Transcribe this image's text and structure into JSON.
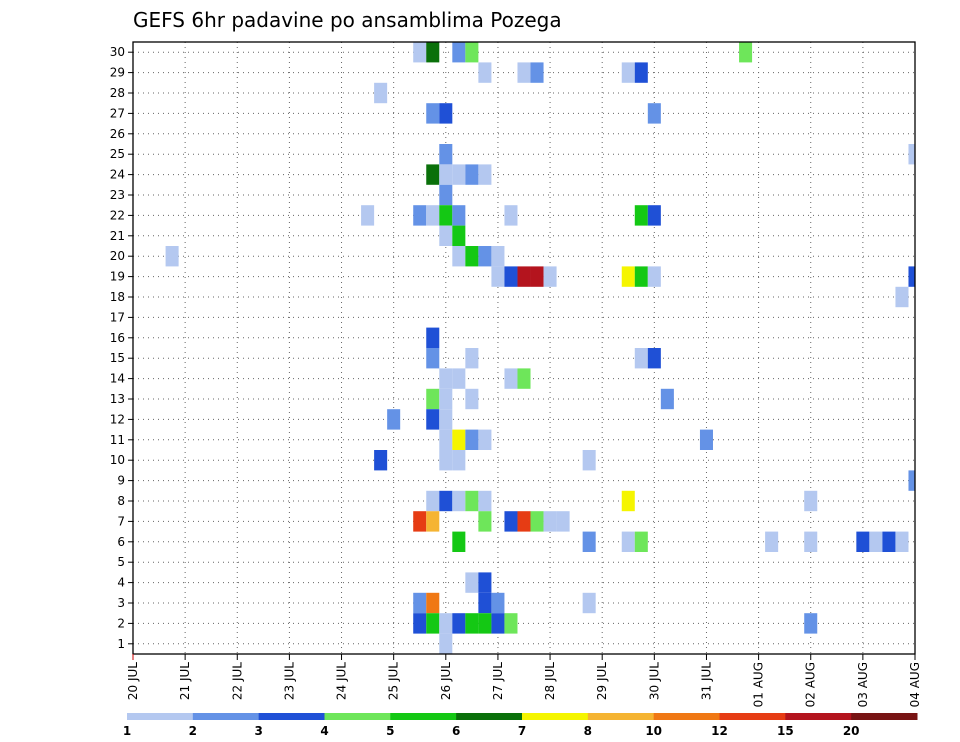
{
  "chart_data": {
    "type": "heatmap",
    "title": "GEFS 6hr padavine po ansamblima Pozega",
    "xlabel": "",
    "ylabel": "",
    "x_ticks": [
      "20 JUL",
      "21 JUL",
      "22 JUL",
      "23 JUL",
      "24 JUL",
      "25 JUL",
      "26 JUL",
      "27 JUL",
      "28 JUL",
      "29 JUL",
      "30 JUL",
      "31 JUL",
      "01 AUG",
      "02 AUG",
      "03 AUG",
      "04 AUG"
    ],
    "x_step": "6h",
    "x_start": "20 JUL 00Z",
    "y_ticks": [
      "1",
      "2",
      "3",
      "4",
      "5",
      "6",
      "7",
      "8",
      "9",
      "10",
      "11",
      "12",
      "13",
      "14",
      "15",
      "16",
      "17",
      "18",
      "19",
      "20",
      "21",
      "22",
      "23",
      "24",
      "25",
      "26",
      "27",
      "28",
      "29",
      "30"
    ],
    "grid": true,
    "legend": {
      "placement": "bottom",
      "labels": [
        "1",
        "2",
        "3",
        "4",
        "5",
        "6",
        "7",
        "8",
        "10",
        "12",
        "15",
        "20"
      ],
      "colors": [
        "#b4c8f0",
        "#6492e6",
        "#1f50d6",
        "#6ee65a",
        "#14c814",
        "#0a700a",
        "#f5f500",
        "#f5b432",
        "#f07814",
        "#e63c14",
        "#b4141e",
        "#781414"
      ]
    },
    "cells": [
      {
        "member": 30,
        "t": "25 JUL 12Z",
        "class": 1
      },
      {
        "member": 30,
        "t": "25 JUL 18Z",
        "class": 6
      },
      {
        "member": 30,
        "t": "26 JUL 06Z",
        "class": 2
      },
      {
        "member": 30,
        "t": "26 JUL 12Z",
        "class": 4
      },
      {
        "member": 30,
        "t": "31 JUL 18Z",
        "class": 4
      },
      {
        "member": 29,
        "t": "26 JUL 18Z",
        "class": 1
      },
      {
        "member": 29,
        "t": "27 JUL 12Z",
        "class": 1
      },
      {
        "member": 29,
        "t": "27 JUL 18Z",
        "class": 2
      },
      {
        "member": 29,
        "t": "29 JUL 12Z",
        "class": 1
      },
      {
        "member": 29,
        "t": "29 JUL 18Z",
        "class": 3
      },
      {
        "member": 28,
        "t": "24 JUL 18Z",
        "class": 1
      },
      {
        "member": 27,
        "t": "25 JUL 18Z",
        "class": 2
      },
      {
        "member": 27,
        "t": "26 JUL 00Z",
        "class": 3
      },
      {
        "member": 27,
        "t": "30 JUL 00Z",
        "class": 2
      },
      {
        "member": 25,
        "t": "26 JUL 00Z",
        "class": 2
      },
      {
        "member": 25,
        "t": "04 AUG 00Z",
        "class": 1
      },
      {
        "member": 24,
        "t": "25 JUL 18Z",
        "class": 6
      },
      {
        "member": 24,
        "t": "26 JUL 00Z",
        "class": 1
      },
      {
        "member": 24,
        "t": "26 JUL 06Z",
        "class": 1
      },
      {
        "member": 24,
        "t": "26 JUL 12Z",
        "class": 2
      },
      {
        "member": 24,
        "t": "26 JUL 18Z",
        "class": 1
      },
      {
        "member": 23,
        "t": "26 JUL 00Z",
        "class": 2
      },
      {
        "member": 22,
        "t": "24 JUL 12Z",
        "class": 1
      },
      {
        "member": 22,
        "t": "25 JUL 12Z",
        "class": 2
      },
      {
        "member": 22,
        "t": "25 JUL 18Z",
        "class": 1
      },
      {
        "member": 22,
        "t": "26 JUL 00Z",
        "class": 5
      },
      {
        "member": 22,
        "t": "26 JUL 06Z",
        "class": 2
      },
      {
        "member": 22,
        "t": "27 JUL 06Z",
        "class": 1
      },
      {
        "member": 22,
        "t": "29 JUL 18Z",
        "class": 5
      },
      {
        "member": 22,
        "t": "30 JUL 00Z",
        "class": 3
      },
      {
        "member": 21,
        "t": "26 JUL 00Z",
        "class": 1
      },
      {
        "member": 21,
        "t": "26 JUL 06Z",
        "class": 5
      },
      {
        "member": 20,
        "t": "20 JUL 18Z",
        "class": 1
      },
      {
        "member": 20,
        "t": "26 JUL 06Z",
        "class": 1
      },
      {
        "member": 20,
        "t": "26 JUL 12Z",
        "class": 5
      },
      {
        "member": 20,
        "t": "26 JUL 18Z",
        "class": 2
      },
      {
        "member": 20,
        "t": "27 JUL 00Z",
        "class": 1
      },
      {
        "member": 19,
        "t": "27 JUL 00Z",
        "class": 1
      },
      {
        "member": 19,
        "t": "27 JUL 06Z",
        "class": 3
      },
      {
        "member": 19,
        "t": "27 JUL 12Z",
        "class": 11
      },
      {
        "member": 19,
        "t": "27 JUL 18Z",
        "class": 11
      },
      {
        "member": 19,
        "t": "28 JUL 00Z",
        "class": 1
      },
      {
        "member": 19,
        "t": "29 JUL 12Z",
        "class": 7
      },
      {
        "member": 19,
        "t": "29 JUL 18Z",
        "class": 5
      },
      {
        "member": 19,
        "t": "30 JUL 00Z",
        "class": 1
      },
      {
        "member": 19,
        "t": "04 AUG 00Z",
        "class": 3
      },
      {
        "member": 18,
        "t": "03 AUG 18Z",
        "class": 1
      },
      {
        "member": 16,
        "t": "25 JUL 18Z",
        "class": 3
      },
      {
        "member": 15,
        "t": "25 JUL 18Z",
        "class": 2
      },
      {
        "member": 15,
        "t": "26 JUL 12Z",
        "class": 1
      },
      {
        "member": 15,
        "t": "29 JUL 18Z",
        "class": 1
      },
      {
        "member": 15,
        "t": "30 JUL 00Z",
        "class": 3
      },
      {
        "member": 14,
        "t": "26 JUL 00Z",
        "class": 1
      },
      {
        "member": 14,
        "t": "26 JUL 06Z",
        "class": 1
      },
      {
        "member": 14,
        "t": "27 JUL 06Z",
        "class": 1
      },
      {
        "member": 14,
        "t": "27 JUL 12Z",
        "class": 4
      },
      {
        "member": 13,
        "t": "25 JUL 18Z",
        "class": 4
      },
      {
        "member": 13,
        "t": "26 JUL 00Z",
        "class": 1
      },
      {
        "member": 13,
        "t": "26 JUL 12Z",
        "class": 1
      },
      {
        "member": 13,
        "t": "30 JUL 06Z",
        "class": 2
      },
      {
        "member": 12,
        "t": "25 JUL 00Z",
        "class": 2
      },
      {
        "member": 12,
        "t": "25 JUL 18Z",
        "class": 3
      },
      {
        "member": 12,
        "t": "26 JUL 00Z",
        "class": 1
      },
      {
        "member": 11,
        "t": "26 JUL 00Z",
        "class": 1
      },
      {
        "member": 11,
        "t": "26 JUL 06Z",
        "class": 7
      },
      {
        "member": 11,
        "t": "26 JUL 12Z",
        "class": 2
      },
      {
        "member": 11,
        "t": "26 JUL 18Z",
        "class": 1
      },
      {
        "member": 11,
        "t": "31 JUL 00Z",
        "class": 2
      },
      {
        "member": 10,
        "t": "24 JUL 18Z",
        "class": 3
      },
      {
        "member": 10,
        "t": "26 JUL 00Z",
        "class": 1
      },
      {
        "member": 10,
        "t": "26 JUL 06Z",
        "class": 1
      },
      {
        "member": 10,
        "t": "28 JUL 18Z",
        "class": 1
      },
      {
        "member": 9,
        "t": "04 AUG 00Z",
        "class": 2
      },
      {
        "member": 8,
        "t": "25 JUL 18Z",
        "class": 1
      },
      {
        "member": 8,
        "t": "26 JUL 00Z",
        "class": 3
      },
      {
        "member": 8,
        "t": "26 JUL 06Z",
        "class": 1
      },
      {
        "member": 8,
        "t": "26 JUL 12Z",
        "class": 4
      },
      {
        "member": 8,
        "t": "26 JUL 18Z",
        "class": 1
      },
      {
        "member": 8,
        "t": "29 JUL 12Z",
        "class": 7
      },
      {
        "member": 8,
        "t": "02 AUG 00Z",
        "class": 1
      },
      {
        "member": 7,
        "t": "25 JUL 12Z",
        "class": 10
      },
      {
        "member": 7,
        "t": "25 JUL 18Z",
        "class": 8
      },
      {
        "member": 7,
        "t": "26 JUL 18Z",
        "class": 4
      },
      {
        "member": 7,
        "t": "27 JUL 06Z",
        "class": 3
      },
      {
        "member": 7,
        "t": "27 JUL 12Z",
        "class": 10
      },
      {
        "member": 7,
        "t": "27 JUL 18Z",
        "class": 4
      },
      {
        "member": 7,
        "t": "28 JUL 00Z",
        "class": 1
      },
      {
        "member": 7,
        "t": "28 JUL 06Z",
        "class": 1
      },
      {
        "member": 6,
        "t": "26 JUL 06Z",
        "class": 5
      },
      {
        "member": 6,
        "t": "28 JUL 18Z",
        "class": 2
      },
      {
        "member": 6,
        "t": "29 JUL 12Z",
        "class": 1
      },
      {
        "member": 6,
        "t": "29 JUL 18Z",
        "class": 4
      },
      {
        "member": 6,
        "t": "01 AUG 06Z",
        "class": 1
      },
      {
        "member": 6,
        "t": "02 AUG 00Z",
        "class": 1
      },
      {
        "member": 6,
        "t": "03 AUG 00Z",
        "class": 3
      },
      {
        "member": 6,
        "t": "03 AUG 06Z",
        "class": 1
      },
      {
        "member": 6,
        "t": "03 AUG 12Z",
        "class": 3
      },
      {
        "member": 6,
        "t": "03 AUG 18Z",
        "class": 1
      },
      {
        "member": 4,
        "t": "26 JUL 12Z",
        "class": 1
      },
      {
        "member": 4,
        "t": "26 JUL 18Z",
        "class": 3
      },
      {
        "member": 3,
        "t": "25 JUL 12Z",
        "class": 2
      },
      {
        "member": 3,
        "t": "25 JUL 18Z",
        "class": 9
      },
      {
        "member": 3,
        "t": "26 JUL 18Z",
        "class": 3
      },
      {
        "member": 3,
        "t": "27 JUL 00Z",
        "class": 2
      },
      {
        "member": 3,
        "t": "28 JUL 18Z",
        "class": 1
      },
      {
        "member": 2,
        "t": "25 JUL 12Z",
        "class": 3
      },
      {
        "member": 2,
        "t": "25 JUL 18Z",
        "class": 5
      },
      {
        "member": 2,
        "t": "26 JUL 00Z",
        "class": 1
      },
      {
        "member": 2,
        "t": "26 JUL 06Z",
        "class": 3
      },
      {
        "member": 2,
        "t": "26 JUL 12Z",
        "class": 5
      },
      {
        "member": 2,
        "t": "26 JUL 18Z",
        "class": 5
      },
      {
        "member": 2,
        "t": "27 JUL 00Z",
        "class": 3
      },
      {
        "member": 2,
        "t": "27 JUL 06Z",
        "class": 4
      },
      {
        "member": 2,
        "t": "02 AUG 00Z",
        "class": 2
      },
      {
        "member": 1,
        "t": "26 JUL 00Z",
        "class": 1
      }
    ]
  }
}
